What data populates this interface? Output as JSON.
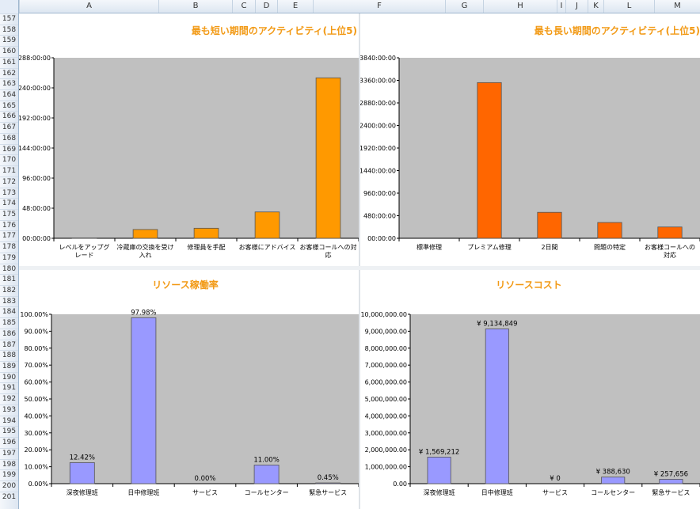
{
  "spreadsheet": {
    "columns": [
      "A",
      "B",
      "C",
      "D",
      "E",
      "F",
      "G",
      "H",
      "I",
      "J",
      "K",
      "L",
      "M"
    ],
    "rows": [
      "157",
      "158",
      "159",
      "160",
      "161",
      "162",
      "163",
      "164",
      "165",
      "166",
      "167",
      "168",
      "169",
      "170",
      "171",
      "172",
      "173",
      "174",
      "175",
      "176",
      "177",
      "178",
      "179",
      "180",
      "181",
      "182",
      "183",
      "184",
      "185",
      "186",
      "187",
      "188",
      "189",
      "190",
      "191",
      "192",
      "193",
      "194",
      "195",
      "196",
      "197",
      "198",
      "199",
      "200",
      "201"
    ]
  },
  "colors": {
    "title": "#f29a16",
    "plot_area": "#c0c0c0",
    "bar_orange": "#ff9900",
    "bar_dark_orange": "#ff6600",
    "bar_lavender": "#9999ff",
    "bar_border": "#555555"
  },
  "chart_data": [
    {
      "id": "shortest",
      "type": "bar",
      "title": "最も短い期間のアクティビティ(上位5)",
      "y_unit": "hours",
      "ylim": [
        0,
        288
      ],
      "y_ticks": [
        0,
        48,
        96,
        144,
        192,
        240,
        288
      ],
      "y_tick_labels": [
        "00:00:00",
        "48:00:00",
        "96:00:00",
        "144:00:00",
        "192:00:00",
        "240:00:00",
        "288:00:00"
      ],
      "categories": [
        [
          "レベルをアップグ",
          "レード"
        ],
        [
          "冷蔵庫の交換を受け",
          "入れ"
        ],
        [
          "修理員を手配"
        ],
        [
          "お客様にアドバイス"
        ],
        [
          "お客様コールへの対",
          "応"
        ]
      ],
      "values": [
        0.5,
        14,
        16,
        42,
        256
      ],
      "data_labels": [],
      "bar_color": "#ff9900",
      "grid": false,
      "legend": "none"
    },
    {
      "id": "longest",
      "type": "bar",
      "title": "最も長い期間のアクティビティ(上位5)",
      "y_unit": "hours",
      "ylim": [
        0,
        3840
      ],
      "y_ticks": [
        0,
        480,
        960,
        1440,
        1920,
        2400,
        2880,
        3360,
        3840
      ],
      "y_tick_labels": [
        "00:00:00",
        "480:00:00",
        "960:00:00",
        "1440:00:00",
        "1920:00:00",
        "2400:00:00",
        "2880:00:00",
        "3360:00:00",
        "3840:00:00"
      ],
      "categories": [
        [
          "標準修理"
        ],
        [
          "プレミアム修理"
        ],
        [
          "2日間"
        ],
        [
          "問題の特定"
        ],
        [
          "お客様コールへの",
          "対応"
        ]
      ],
      "values": [
        0,
        3312,
        552,
        336,
        240
      ],
      "data_labels": [],
      "bar_color": "#ff6600",
      "grid": false,
      "legend": "none"
    },
    {
      "id": "utilization",
      "type": "bar",
      "title": "リソース稼働率",
      "ylim": [
        0,
        100
      ],
      "y_ticks": [
        0,
        10,
        20,
        30,
        40,
        50,
        60,
        70,
        80,
        90,
        100
      ],
      "y_tick_labels": [
        "0.00%",
        "10.00%",
        "20.00%",
        "30.00%",
        "40.00%",
        "50.00%",
        "60.00%",
        "70.00%",
        "80.00%",
        "90.00%",
        "100.00%"
      ],
      "categories": [
        [
          "深夜修理班"
        ],
        [
          "日中修理班"
        ],
        [
          "サービス"
        ],
        [
          "コールセンター"
        ],
        [
          "緊急サービス"
        ]
      ],
      "values": [
        12.42,
        97.98,
        0.0,
        11.0,
        0.45
      ],
      "data_labels": [
        "12.42%",
        "97.98%",
        "0.00%",
        "11.00%",
        "0.45%"
      ],
      "bar_color": "#9999ff",
      "grid": false,
      "legend": "none"
    },
    {
      "id": "cost",
      "type": "bar",
      "title": "リソースコスト",
      "ylim": [
        0,
        10000000
      ],
      "y_ticks": [
        0,
        1000000,
        2000000,
        3000000,
        4000000,
        5000000,
        6000000,
        7000000,
        8000000,
        9000000,
        10000000
      ],
      "y_tick_labels": [
        "0.00",
        "1,000,000.00",
        "2,000,000.00",
        "3,000,000.00",
        "4,000,000.00",
        "5,000,000.00",
        "6,000,000.00",
        "7,000,000.00",
        "8,000,000.00",
        "9,000,000.00",
        "10,000,000.00"
      ],
      "categories": [
        [
          "深夜修理班"
        ],
        [
          "日中修理班"
        ],
        [
          "サービス"
        ],
        [
          "コールセンター"
        ],
        [
          "緊急サービス"
        ]
      ],
      "values": [
        1569212,
        9134849,
        0,
        388630,
        257656
      ],
      "data_labels": [
        "¥ 1,569,212",
        "¥ 9,134,849",
        "¥ 0",
        "¥ 388,630",
        "¥ 257,656"
      ],
      "bar_color": "#9999ff",
      "grid": false,
      "legend": "none"
    }
  ]
}
